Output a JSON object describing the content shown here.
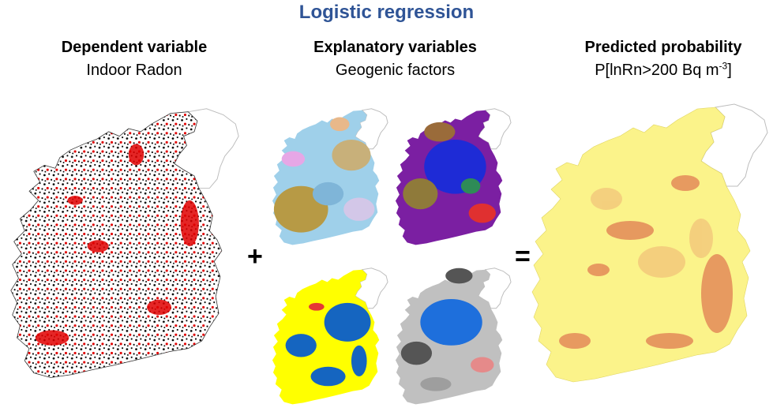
{
  "title": "Logistic regression",
  "columns": {
    "dependent": {
      "heading": "Dependent variable",
      "subheading": "Indoor Radon"
    },
    "explanatory": {
      "heading": "Explanatory variables",
      "subheading": "Geogenic factors"
    },
    "predicted": {
      "heading": "Predicted probability",
      "subheading_prefix": "P[lnRn>200 Bq m",
      "subheading_sup": "-3",
      "subheading_suffix": "]"
    }
  },
  "operators": {
    "plus": "+",
    "equals": "="
  },
  "colors": {
    "title": "#2f5496",
    "ni_outline": "#bdbdbd",
    "radon_points_low": "#000000",
    "radon_points_high": "#e00000",
    "probability_low": "#fbf38a",
    "probability_high": "#e38a58"
  }
}
